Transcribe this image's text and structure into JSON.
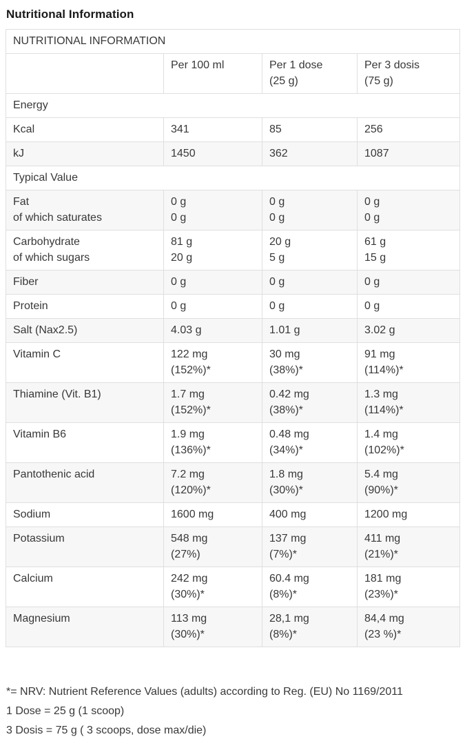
{
  "page_title": "Nutritional Information",
  "table": {
    "title": "NUTRITIONAL INFORMATION",
    "column_headers": [
      "Per 100 ml",
      "Per 1 dose\n(25 g)",
      "Per 3 dosis\n(75 g)"
    ],
    "rows": [
      {
        "type": "section",
        "label": "Energy"
      },
      {
        "type": "data",
        "shaded": false,
        "label": "Kcal",
        "values": [
          "341",
          "85",
          "256"
        ]
      },
      {
        "type": "data",
        "shaded": true,
        "label": "kJ",
        "values": [
          "1450",
          "362",
          "1087"
        ]
      },
      {
        "type": "section",
        "label": "Typical Value"
      },
      {
        "type": "data",
        "shaded": true,
        "label": "Fat\nof which saturates",
        "values": [
          "0 g\n0 g",
          "0 g\n0 g",
          "0 g\n0 g"
        ]
      },
      {
        "type": "data",
        "shaded": false,
        "label": "Carbohydrate\nof which sugars",
        "values": [
          "81 g\n20 g",
          "20 g\n5 g",
          "61 g\n15 g"
        ]
      },
      {
        "type": "data",
        "shaded": true,
        "label": "Fiber",
        "values": [
          "0 g",
          "0 g",
          "0 g"
        ]
      },
      {
        "type": "data",
        "shaded": false,
        "label": "Protein",
        "values": [
          "0 g",
          "0 g",
          "0 g"
        ]
      },
      {
        "type": "data",
        "shaded": true,
        "label": "Salt (Nax2.5)",
        "values": [
          "4.03 g",
          "1.01 g",
          "3.02 g"
        ]
      },
      {
        "type": "data",
        "shaded": false,
        "label": "Vitamin C",
        "values": [
          "122 mg\n(152%)*",
          "30 mg\n(38%)*",
          "91 mg\n(114%)*"
        ]
      },
      {
        "type": "data",
        "shaded": true,
        "label": "Thiamine (Vit. B1)",
        "values": [
          "1.7 mg\n(152%)*",
          "0.42 mg\n(38%)*",
          "1.3 mg\n(114%)*"
        ]
      },
      {
        "type": "data",
        "shaded": false,
        "label": "Vitamin B6",
        "values": [
          "1.9 mg\n(136%)*",
          "0.48 mg\n(34%)*",
          "1.4 mg\n(102%)*"
        ]
      },
      {
        "type": "data",
        "shaded": true,
        "label": "Pantothenic acid",
        "values": [
          "7.2 mg\n(120%)*",
          "1.8 mg\n(30%)*",
          "5.4 mg\n(90%)*"
        ]
      },
      {
        "type": "data",
        "shaded": false,
        "label": "Sodium",
        "values": [
          "1600 mg",
          "400 mg",
          "1200 mg"
        ]
      },
      {
        "type": "data",
        "shaded": true,
        "label": "Potassium",
        "values": [
          "548 mg\n(27%)",
          "137 mg\n(7%)*",
          "411 mg\n(21%)*"
        ]
      },
      {
        "type": "data",
        "shaded": false,
        "label": "Calcium",
        "values": [
          "242 mg\n(30%)*",
          "60.4 mg\n(8%)*",
          "181 mg\n(23%)*"
        ]
      },
      {
        "type": "data",
        "shaded": true,
        "label": "Magnesium",
        "values": [
          "113 mg\n(30%)*",
          "28,1 mg\n(8%)*",
          "84,4 mg\n(23 %)*"
        ]
      }
    ]
  },
  "footnotes": [
    "*= NRV: Nutrient Reference Values (adults) according to Reg. (EU) No 1169/2011",
    "1 Dose = 25 g (1 scoop)",
    "3 Dosis = 75 g ( 3 scoops, dose max/die)"
  ],
  "colors": {
    "heading_text": "#191919",
    "body_text": "#383838",
    "table_border": "#dfdfdf",
    "row_stripe": "#f7f7f7",
    "background": "#ffffff"
  }
}
